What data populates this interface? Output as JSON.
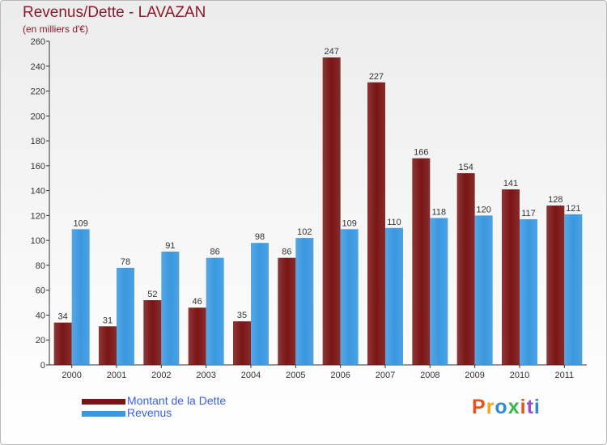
{
  "chart_data": {
    "type": "bar",
    "title": "Revenus/Dette - LAVAZAN",
    "subtitle": "(en milliers d'€)",
    "categories": [
      "2000",
      "2001",
      "2002",
      "2003",
      "2004",
      "2005",
      "2006",
      "2007",
      "2008",
      "2009",
      "2010",
      "2011"
    ],
    "series": [
      {
        "name": "Montant de la Dette",
        "color": "#7a1515",
        "values": [
          34,
          31,
          52,
          46,
          35,
          86,
          247,
          227,
          166,
          154,
          141,
          128
        ]
      },
      {
        "name": "Revenus",
        "color": "#3a98e0",
        "values": [
          109,
          78,
          91,
          86,
          98,
          102,
          109,
          110,
          118,
          120,
          117,
          121
        ]
      }
    ],
    "ylim": [
      0,
      260
    ],
    "yticks": [
      0,
      20,
      40,
      60,
      80,
      100,
      120,
      140,
      160,
      180,
      200,
      220,
      240,
      260
    ],
    "grid": false,
    "legend_position": "bottom-left"
  },
  "logo": {
    "text": "Proxiti",
    "colors": [
      "#e8501c",
      "#f2a51a",
      "#2a8ad6",
      "#3bb54a",
      "#e8501c",
      "#9b4fc7",
      "#2a8ad6"
    ]
  }
}
